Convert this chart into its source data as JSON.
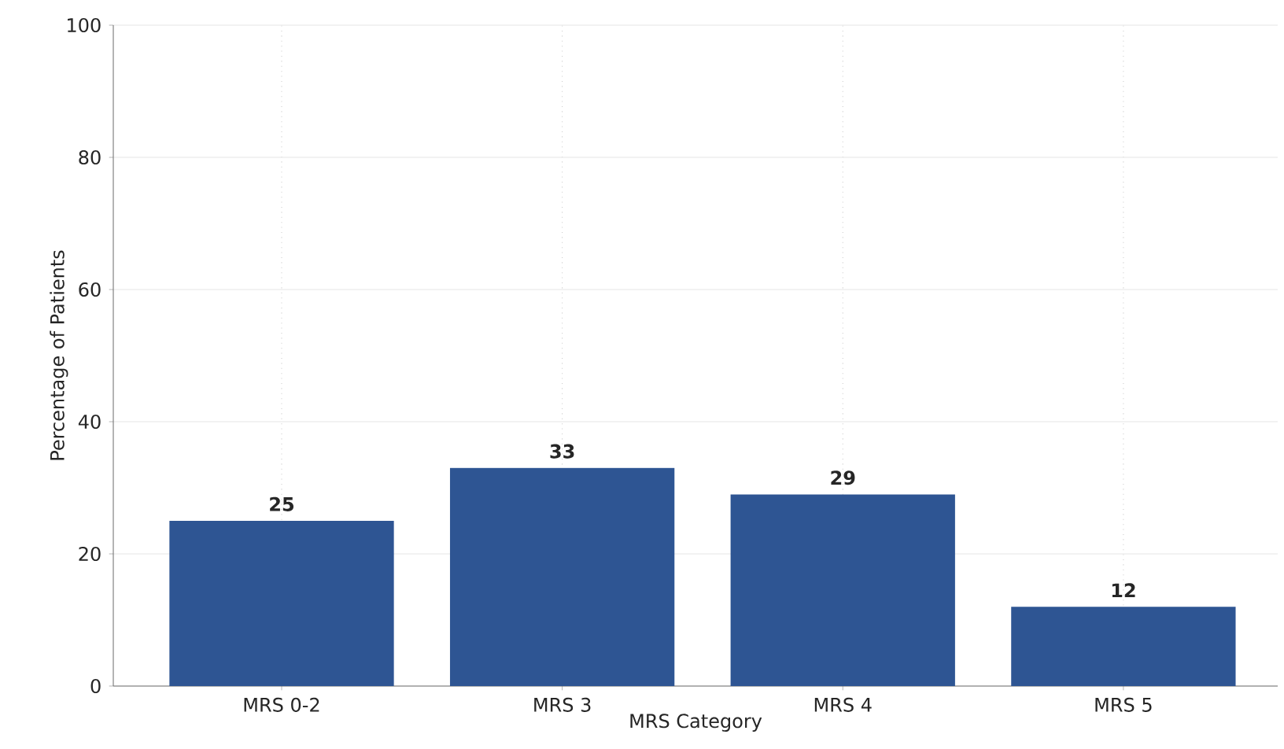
{
  "chart_data": {
    "type": "bar",
    "xlabel": "MRS Category",
    "ylabel": "Percentage of Patients",
    "categories": [
      "MRS 0-2",
      "MRS 3",
      "MRS 4",
      "MRS 5"
    ],
    "values": [
      25,
      33,
      29,
      12
    ],
    "color": "#2e5593",
    "ylim": [
      0,
      100
    ],
    "yticks": [
      0,
      20,
      40,
      60,
      80,
      100
    ],
    "grid": true,
    "data_labels": true
  }
}
